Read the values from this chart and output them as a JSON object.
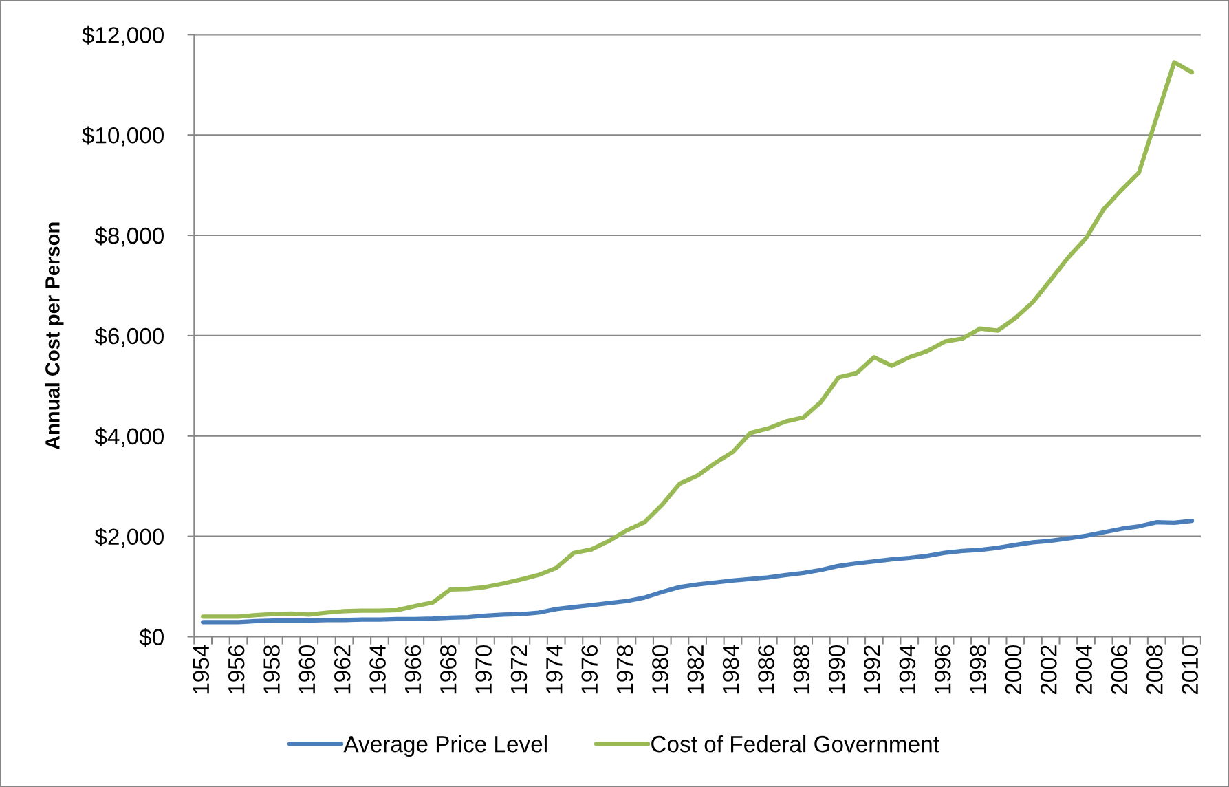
{
  "chart_data": {
    "type": "line",
    "ylabel": "Annual Cost per Person",
    "categories": [
      "1954",
      null,
      "1956",
      null,
      "1958",
      null,
      "1960",
      null,
      "1962",
      null,
      "1964",
      null,
      "1966",
      null,
      "1968",
      null,
      "1970",
      null,
      "1972",
      null,
      "1974",
      null,
      "1976",
      null,
      "1978",
      null,
      "1980",
      null,
      "1982",
      null,
      "1984",
      null,
      "1986",
      null,
      "1988",
      null,
      "1990",
      null,
      "1992",
      null,
      "1994",
      null,
      "1996",
      null,
      "1998",
      null,
      "2000",
      null,
      "2002",
      null,
      "2004",
      null,
      "2006",
      null,
      "2008",
      null,
      "2010"
    ],
    "series": [
      {
        "name": "Average Price Level",
        "color": "#4a7ebb",
        "values": [
          290,
          290,
          290,
          310,
          320,
          320,
          320,
          330,
          330,
          340,
          340,
          350,
          350,
          360,
          380,
          390,
          420,
          440,
          450,
          480,
          550,
          590,
          630,
          670,
          710,
          780,
          890,
          990,
          1040,
          1080,
          1120,
          1150,
          1180,
          1230,
          1270,
          1330,
          1410,
          1460,
          1500,
          1540,
          1570,
          1610,
          1670,
          1710,
          1730,
          1770,
          1830,
          1880,
          1910,
          1960,
          2010,
          2080,
          2150,
          2200,
          2280,
          2270,
          2310
        ]
      },
      {
        "name": "Cost of Federal Government",
        "color": "#98b954",
        "values": [
          400,
          400,
          400,
          430,
          450,
          460,
          440,
          480,
          510,
          520,
          520,
          530,
          610,
          680,
          940,
          950,
          990,
          1060,
          1140,
          1230,
          1370,
          1670,
          1740,
          1910,
          2120,
          2280,
          2630,
          3050,
          3210,
          3460,
          3680,
          4060,
          4150,
          4290,
          4370,
          4680,
          5170,
          5250,
          5570,
          5400,
          5570,
          5690,
          5880,
          5940,
          6140,
          6100,
          6350,
          6670,
          7110,
          7560,
          7940,
          8520,
          8900,
          9250,
          10350,
          11450,
          11250
        ]
      }
    ],
    "ylim": [
      0,
      12000
    ],
    "yticks": [
      {
        "value": 0,
        "label": "$0"
      },
      {
        "value": 2000,
        "label": "$2,000"
      },
      {
        "value": 4000,
        "label": "$4,000"
      },
      {
        "value": 6000,
        "label": "$6,000"
      },
      {
        "value": 8000,
        "label": "$8,000"
      },
      {
        "value": 10000,
        "label": "$10,000"
      },
      {
        "value": 12000,
        "label": "$12,000"
      }
    ],
    "grid": "y",
    "legend": "bottom",
    "line_style": "solid"
  }
}
